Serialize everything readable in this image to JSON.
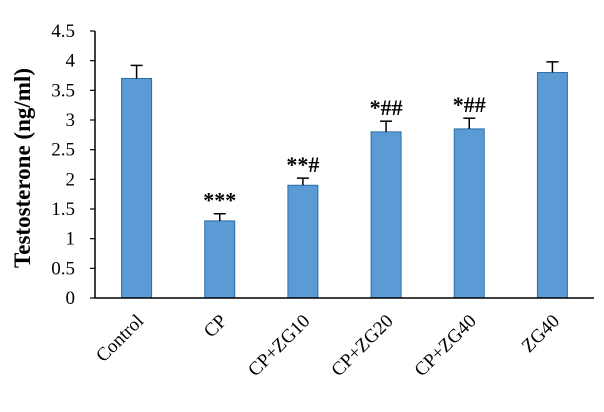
{
  "chart_data": {
    "type": "bar",
    "categories": [
      "Control",
      "CP",
      "CP+ZG10",
      "CP+ZG20",
      "CP+ZG40",
      "ZG40"
    ],
    "values": [
      3.7,
      1.3,
      1.9,
      2.8,
      2.85,
      3.8
    ],
    "errors": [
      0.22,
      0.12,
      0.12,
      0.18,
      0.18,
      0.18
    ],
    "annotations": [
      "",
      "***",
      "**#",
      "*##",
      "*##",
      ""
    ],
    "title": "",
    "xlabel": "",
    "ylabel": "Testosterone (ng/ml)",
    "ylim": [
      0,
      4.5
    ],
    "yticks": [
      "0",
      "0.5",
      "1",
      "1.5",
      "2",
      "2.5",
      "3",
      "3.5",
      "4",
      "4.5"
    ],
    "grid": false,
    "legend": "none",
    "colors": {
      "bar_fill": "#5b9bd5",
      "bar_stroke": "#2e6da4",
      "axis": "#000000",
      "error_bar": "#000000"
    }
  }
}
